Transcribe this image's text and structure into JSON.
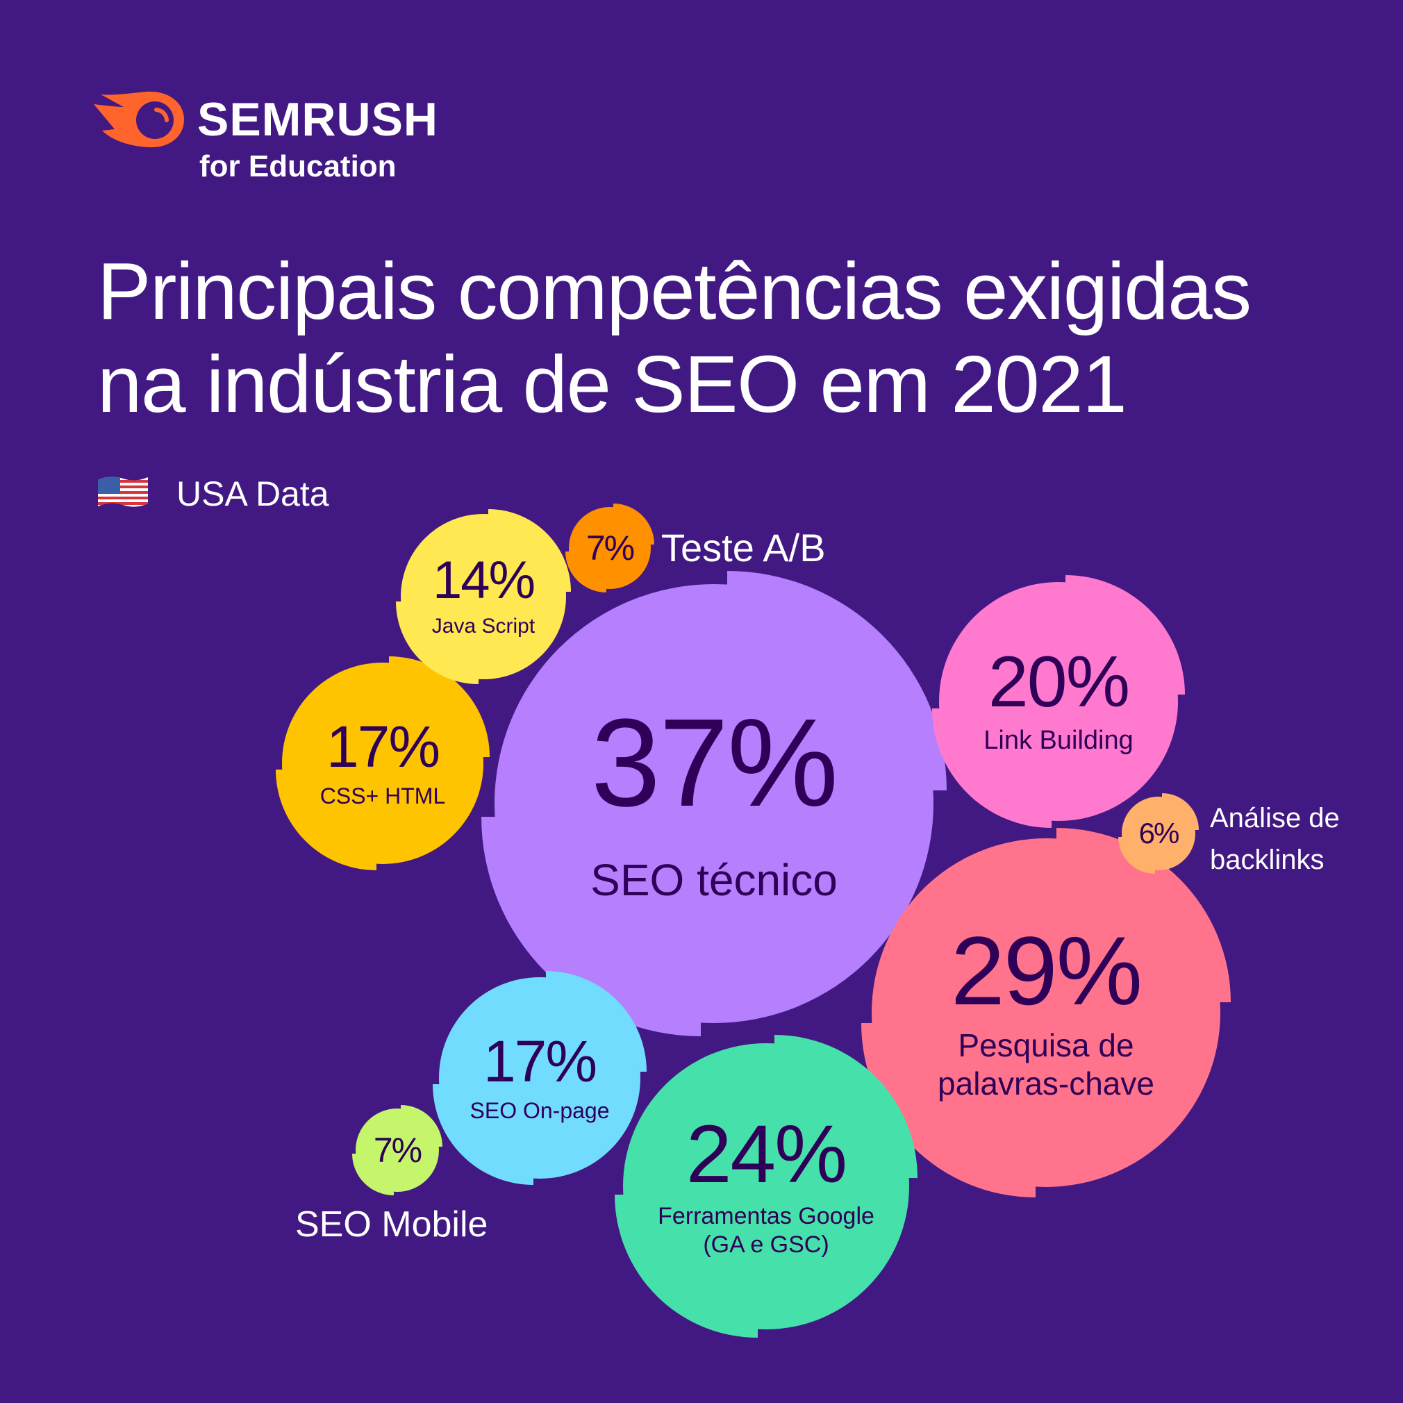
{
  "brand": {
    "name": "SEMRUSH",
    "subtitle": "for Education",
    "logo_icon": "semrush-comet-icon",
    "accent": "#FF642D"
  },
  "title": {
    "line1": "Principais competências exigidas",
    "line2": "na indústria de SEO em 2021"
  },
  "region": {
    "flag_icon": "usa-flag-icon",
    "label": "USA Data"
  },
  "colors": {
    "background": "#421983",
    "text_dark": "#2E0057",
    "text_light": "#FFFFFF"
  },
  "bubbles": [
    {
      "id": "seo-tecnico",
      "pct": "37%",
      "label": "SEO técnico",
      "color": "#B57FFE"
    },
    {
      "id": "pesquisa-palavras-chave",
      "pct": "29%",
      "label": "Pesquisa de palavras-chave",
      "label_lines": [
        "Pesquisa de",
        "palavras-chave"
      ],
      "color": "#FF748C"
    },
    {
      "id": "ferramentas-google",
      "pct": "24%",
      "label": "Ferramentas Google (GA e GSC)",
      "label_lines": [
        "Ferramentas Google",
        "(GA e GSC)"
      ],
      "color": "#46E0AA"
    },
    {
      "id": "link-building",
      "pct": "20%",
      "label": "Link Building",
      "color": "#FF7ACF"
    },
    {
      "id": "css-html",
      "pct": "17%",
      "label": "CSS+ HTML",
      "color": "#FFC400"
    },
    {
      "id": "seo-on-page",
      "pct": "17%",
      "label": "SEO On-page",
      "color": "#71DCFE"
    },
    {
      "id": "java-script",
      "pct": "14%",
      "label": "Java Script",
      "color": "#FFE852"
    },
    {
      "id": "teste-ab",
      "pct": "7%",
      "label": "Teste A/B",
      "color": "#FF9000"
    },
    {
      "id": "seo-mobile",
      "pct": "7%",
      "label": "SEO Mobile",
      "color": "#C4F56A"
    },
    {
      "id": "analise-backlinks",
      "pct": "6%",
      "label": "Análise de backlinks",
      "label_lines": [
        "Análise de",
        "backlinks"
      ],
      "color": "#FFB06A"
    }
  ],
  "chart_data": {
    "type": "bubble",
    "title": "Principais competências exigidas na indústria de SEO em 2021",
    "subtitle": "USA Data",
    "categories": [
      "SEO técnico",
      "Pesquisa de palavras-chave",
      "Ferramentas Google (GA e GSC)",
      "Link Building",
      "CSS+ HTML",
      "SEO On-page",
      "Java Script",
      "Teste A/B",
      "SEO Mobile",
      "Análise de backlinks"
    ],
    "values": [
      37,
      29,
      24,
      20,
      17,
      17,
      14,
      7,
      7,
      6
    ],
    "unit": "%",
    "xlabel": "",
    "ylabel": "",
    "legend": "none"
  }
}
